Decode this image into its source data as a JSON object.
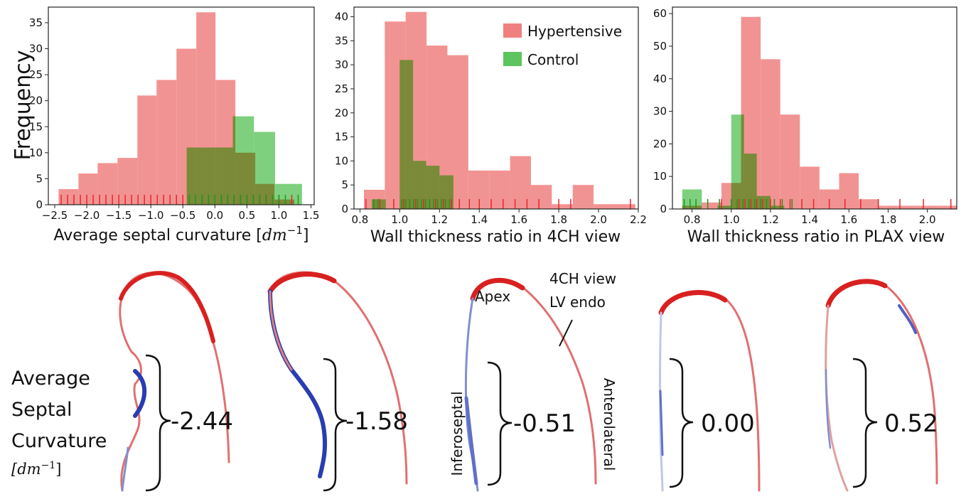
{
  "colors": {
    "hypertensive": "#f08080",
    "control": "#5ec45e",
    "overlap": "#7a7a2a",
    "rug_hyp": "#e8262a",
    "rug_ctrl": "#1a9a1a",
    "shape_red": "#d92020",
    "shape_blue": "#2a3cb0"
  },
  "legend": {
    "hypertensive": "Hypertensive",
    "control": "Control",
    "placement": "top-right"
  },
  "chart_data": [
    {
      "type": "histogram",
      "ylabel": "Frequency",
      "xlabel": "Average septal curvature [",
      "xlabel_italic": "dm",
      "xlabel_sup": "−1",
      "xlabel_end": "]",
      "xlim": [
        -2.6,
        1.55
      ],
      "ylim": [
        0,
        38
      ],
      "xticks": [
        -2.5,
        -2.0,
        -1.5,
        -1.0,
        -0.5,
        0.0,
        0.5,
        1.0,
        1.5
      ],
      "xtick_labels": [
        "−2.5",
        "−2.0",
        "−1.5",
        "−1.0",
        "−0.5",
        "0.0",
        "0.5",
        "1.0",
        "1.5"
      ],
      "yticks": [
        0,
        5,
        10,
        15,
        20,
        25,
        30,
        35
      ],
      "ytick_labels": [
        "0",
        "5",
        "10",
        "15",
        "20",
        "25",
        "30",
        "35"
      ],
      "series": [
        {
          "name": "Hypertensive",
          "bins": [
            -2.44,
            -2.13,
            -1.83,
            -1.52,
            -1.21,
            -0.91,
            -0.6,
            -0.29,
            0.01,
            0.32,
            0.63,
            0.93,
            1.24
          ],
          "counts": [
            3,
            6,
            8,
            9,
            21,
            24,
            30,
            37,
            24,
            10,
            4,
            1
          ]
        },
        {
          "name": "Control",
          "bins": [
            -0.44,
            -0.13,
            0.28,
            0.61,
            0.94,
            1.36
          ],
          "counts": [
            11,
            11,
            17,
            14,
            4
          ]
        }
      ],
      "rug": {
        "hypertensive": [
          -2.4,
          -2.3,
          -2.2,
          -2.1,
          -2.0,
          -1.9,
          -1.8,
          -1.7,
          -1.6,
          -1.5,
          -1.4,
          -1.3,
          -1.2,
          -1.1,
          -1.0,
          -0.9,
          -0.8,
          -0.7,
          -0.6,
          -0.5,
          -0.4,
          -0.3,
          -0.2,
          -0.1,
          0.0,
          0.1,
          0.2,
          0.3,
          0.4,
          0.5,
          0.6,
          0.7,
          0.8,
          1.0,
          1.2
        ],
        "control": [
          -0.4,
          -0.3,
          -0.2,
          -0.1,
          0.0,
          0.1,
          0.2,
          0.3,
          0.4,
          0.5,
          0.6,
          0.7,
          0.8,
          0.9,
          1.0,
          1.1,
          1.3
        ]
      }
    },
    {
      "type": "histogram",
      "ylabel": "",
      "xlabel": "Wall thickness ratio in 4CH view",
      "xlim": [
        0.77,
        2.2
      ],
      "ylim": [
        0,
        42
      ],
      "xticks": [
        0.8,
        1.0,
        1.2,
        1.4,
        1.6,
        1.8,
        2.0,
        2.2
      ],
      "xtick_labels": [
        "0.8",
        "1.0",
        "1.2",
        "1.4",
        "1.6",
        "1.8",
        "2.0",
        "2.2"
      ],
      "yticks": [
        0,
        5,
        10,
        15,
        20,
        25,
        30,
        35,
        40
      ],
      "ytick_labels": [
        "0",
        "5",
        "10",
        "15",
        "20",
        "25",
        "30",
        "35",
        "40"
      ],
      "series": [
        {
          "name": "Hypertensive",
          "bins": [
            0.82,
            0.925,
            1.03,
            1.135,
            1.24,
            1.345,
            1.45,
            1.555,
            1.66,
            1.765,
            1.87,
            1.975,
            2.08,
            2.185
          ],
          "counts": [
            4,
            39,
            41,
            34,
            32,
            8,
            8,
            11,
            5,
            1,
            5,
            1,
            1
          ]
        },
        {
          "name": "Control",
          "bins": [
            0.86,
            0.93,
            1.0,
            1.067,
            1.133,
            1.2,
            1.27
          ],
          "counts": [
            2,
            0,
            31,
            10,
            9,
            7
          ]
        }
      ],
      "rug": {
        "hypertensive": [
          0.83,
          0.9,
          0.97,
          1.02,
          1.05,
          1.08,
          1.12,
          1.15,
          1.18,
          1.22,
          1.26,
          1.3,
          1.35,
          1.4,
          1.46,
          1.52,
          1.58,
          1.64,
          1.7,
          1.8,
          1.86,
          2.16
        ],
        "control": [
          0.87,
          0.89,
          1.01,
          1.03,
          1.05,
          1.07,
          1.09,
          1.11,
          1.13,
          1.15,
          1.17,
          1.19,
          1.21,
          1.23,
          1.25
        ]
      }
    },
    {
      "type": "histogram",
      "ylabel": "",
      "xlabel": "Wall thickness ratio in PLAX view",
      "xlim": [
        0.7,
        2.15
      ],
      "ylim": [
        0,
        62
      ],
      "xticks": [
        0.8,
        1.0,
        1.2,
        1.4,
        1.6,
        1.8,
        2.0
      ],
      "xtick_labels": [
        "0.8",
        "1.0",
        "1.2",
        "1.4",
        "1.6",
        "1.8",
        "2.0"
      ],
      "yticks": [
        0,
        10,
        20,
        30,
        40,
        50,
        60
      ],
      "ytick_labels": [
        "0",
        "10",
        "20",
        "30",
        "40",
        "50",
        "60"
      ],
      "series": [
        {
          "name": "Hypertensive",
          "bins": [
            0.75,
            0.85,
            0.95,
            1.05,
            1.15,
            1.25,
            1.35,
            1.45,
            1.55,
            1.65,
            1.75,
            1.85,
            1.95,
            2.05,
            2.15
          ],
          "counts": [
            1,
            2,
            8,
            59,
            46,
            29,
            13,
            6,
            11,
            3,
            1,
            1,
            1,
            1
          ]
        },
        {
          "name": "Control",
          "bins": [
            0.75,
            0.85,
            0.93,
            1.0,
            1.065,
            1.13,
            1.2,
            1.27,
            1.33
          ],
          "counts": [
            6,
            0,
            1,
            29,
            17,
            4,
            1,
            0
          ]
        }
      ],
      "rug": {
        "hypertensive": [
          0.95,
          1.0,
          1.04,
          1.07,
          1.1,
          1.13,
          1.16,
          1.2,
          1.25,
          1.3,
          1.36,
          1.42,
          1.5,
          1.58,
          1.66,
          1.75,
          1.86,
          1.98,
          2.12
        ],
        "control": [
          0.76,
          0.79,
          0.82,
          0.88,
          0.94,
          1.0,
          1.03,
          1.06,
          1.09,
          1.12,
          1.15,
          1.18,
          1.22,
          1.26,
          1.31
        ]
      }
    }
  ],
  "bottom": {
    "label_lines": [
      "Average",
      "Septal",
      "Curvature"
    ],
    "unit": "[dm",
    "unit_sup": "−1",
    "unit_end": "]",
    "values": [
      "-2.44",
      "-1.58",
      "-0.51",
      "0.00",
      "0.52"
    ],
    "annotations": {
      "apex": "Apex",
      "view_line1": "4CH view",
      "view_line2": "LV endo",
      "inferoseptal": "Inferoseptal",
      "anterolateral": "Anterolateral"
    }
  }
}
